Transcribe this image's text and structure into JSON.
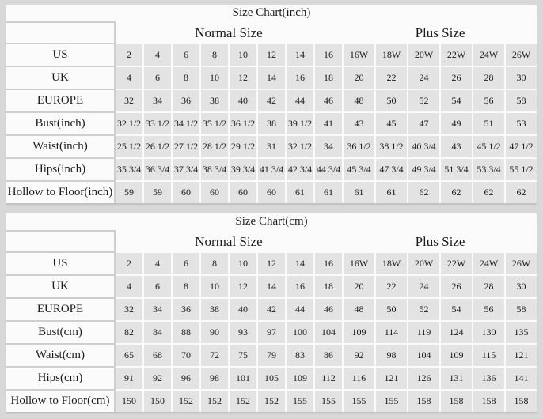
{
  "page": {
    "background": "#d8d8d8",
    "panel_background": "#fbfbfb",
    "data_cell_background": "#e3e3e3",
    "separator_color": "#cfcfcf",
    "text_color": "#1b1b1b"
  },
  "tables": [
    {
      "title": "Size Chart(inch)",
      "normal_header": "Normal Size",
      "plus_header": "Plus Size",
      "normal_columns": 8,
      "plus_columns": 6,
      "rows": [
        {
          "label": "US",
          "values": [
            "2",
            "4",
            "6",
            "8",
            "10",
            "12",
            "14",
            "16",
            "16W",
            "18W",
            "20W",
            "22W",
            "24W",
            "26W"
          ]
        },
        {
          "label": "UK",
          "values": [
            "4",
            "6",
            "8",
            "10",
            "12",
            "14",
            "16",
            "18",
            "20",
            "22",
            "24",
            "26",
            "28",
            "30"
          ]
        },
        {
          "label": "EUROPE",
          "values": [
            "32",
            "34",
            "36",
            "38",
            "40",
            "42",
            "44",
            "46",
            "48",
            "50",
            "52",
            "54",
            "56",
            "58"
          ]
        },
        {
          "label": "Bust(inch)",
          "values": [
            "32 1/2",
            "33 1/2",
            "34 1/2",
            "35 1/2",
            "36 1/2",
            "38",
            "39 1/2",
            "41",
            "43",
            "45",
            "47",
            "49",
            "51",
            "53"
          ]
        },
        {
          "label": "Waist(inch)",
          "values": [
            "25 1/2",
            "26 1/2",
            "27 1/2",
            "28 1/2",
            "29 1/2",
            "31",
            "32 1/2",
            "34",
            "36 1/2",
            "38 1/2",
            "40 3/4",
            "43",
            "45 1/2",
            "47 1/2"
          ]
        },
        {
          "label": "Hips(inch)",
          "values": [
            "35 3/4",
            "36 3/4",
            "37 3/4",
            "38 3/4",
            "39 3/4",
            "41 3/4",
            "42 3/4",
            "44 3/4",
            "45 3/4",
            "47 3/4",
            "49 3/4",
            "51 3/4",
            "53 3/4",
            "55 1/2"
          ]
        },
        {
          "label": "Hollow to Floor(inch)",
          "values": [
            "59",
            "59",
            "60",
            "60",
            "60",
            "60",
            "61",
            "61",
            "61",
            "61",
            "62",
            "62",
            "62",
            "62"
          ]
        }
      ]
    },
    {
      "title": "Size Chart(cm)",
      "normal_header": "Normal Size",
      "plus_header": "Plus Size",
      "normal_columns": 8,
      "plus_columns": 6,
      "rows": [
        {
          "label": "US",
          "values": [
            "2",
            "4",
            "6",
            "8",
            "10",
            "12",
            "14",
            "16",
            "16W",
            "18W",
            "20W",
            "22W",
            "24W",
            "26W"
          ]
        },
        {
          "label": "UK",
          "values": [
            "4",
            "6",
            "8",
            "10",
            "12",
            "14",
            "16",
            "18",
            "20",
            "22",
            "24",
            "26",
            "28",
            "30"
          ]
        },
        {
          "label": "EUROPE",
          "values": [
            "32",
            "34",
            "36",
            "38",
            "40",
            "42",
            "44",
            "46",
            "48",
            "50",
            "52",
            "54",
            "56",
            "58"
          ]
        },
        {
          "label": "Bust(cm)",
          "values": [
            "82",
            "84",
            "88",
            "90",
            "93",
            "97",
            "100",
            "104",
            "109",
            "114",
            "119",
            "124",
            "130",
            "135"
          ]
        },
        {
          "label": "Waist(cm)",
          "values": [
            "65",
            "68",
            "70",
            "72",
            "75",
            "79",
            "83",
            "86",
            "92",
            "98",
            "104",
            "109",
            "115",
            "121"
          ]
        },
        {
          "label": "Hips(cm)",
          "values": [
            "91",
            "92",
            "96",
            "98",
            "101",
            "105",
            "109",
            "112",
            "116",
            "121",
            "126",
            "131",
            "136",
            "141"
          ]
        },
        {
          "label": "Hollow to Floor(cm)",
          "values": [
            "150",
            "150",
            "152",
            "152",
            "152",
            "152",
            "155",
            "155",
            "155",
            "155",
            "158",
            "158",
            "158",
            "158"
          ]
        }
      ]
    }
  ]
}
